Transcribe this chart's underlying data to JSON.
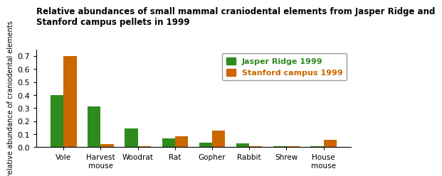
{
  "title": "Relative abundances of small mammal craniodental elements from Jasper Ridge and\nStanford campus pellets in 1999",
  "ylabel": "relative abundance of craniodental elements",
  "categories": [
    "Vole",
    "Harvest\nmouse",
    "Woodrat",
    "Rat",
    "Gopher",
    "Rabbit",
    "Shrew",
    "House\nmouse"
  ],
  "jasper_ridge": [
    0.4,
    0.31,
    0.145,
    0.065,
    0.035,
    0.03,
    0.008,
    0.005
  ],
  "stanford_campus": [
    0.7,
    0.025,
    0.005,
    0.085,
    0.125,
    0.005,
    0.005,
    0.055
  ],
  "jasper_color": "#2e8b1e",
  "stanford_color": "#cc6600",
  "legend_jasper": "Jasper Ridge 1999",
  "legend_stanford": "Stanford campus 1999",
  "ylim": [
    0,
    0.75
  ],
  "yticks": [
    0.0,
    0.1,
    0.2,
    0.3,
    0.4,
    0.5,
    0.6,
    0.7
  ],
  "background_color": "#ffffff",
  "bar_width": 0.35
}
